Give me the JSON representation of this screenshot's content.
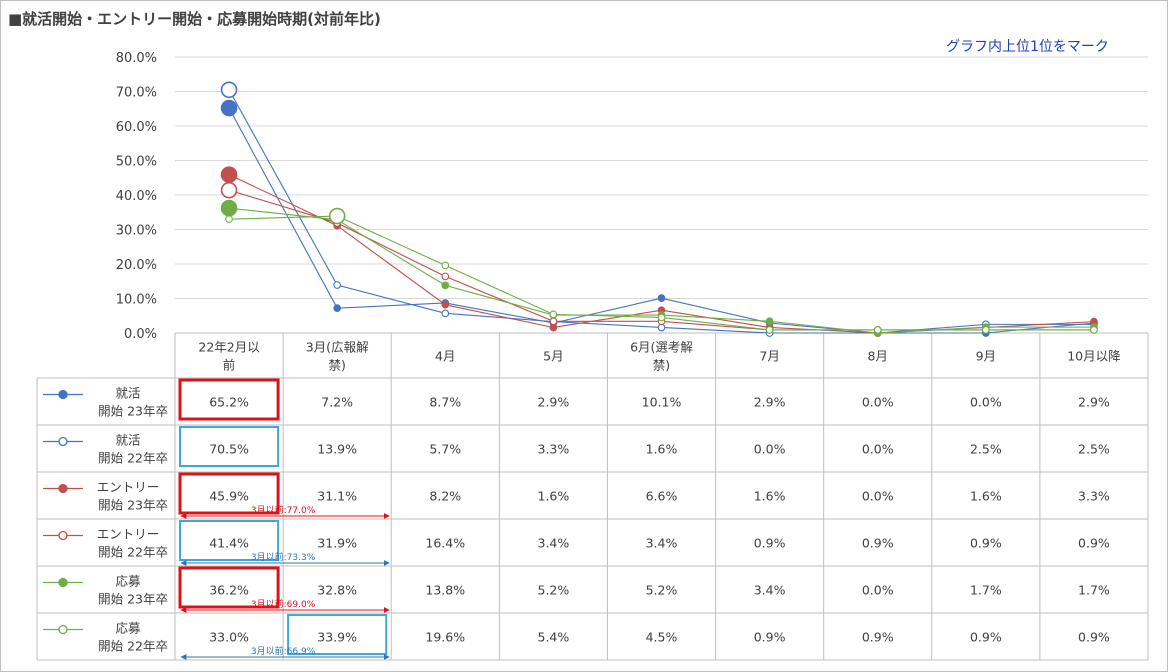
{
  "title": "■就活開始・エントリー開始・応募開始時期(対前年比)",
  "note": "グラフ内上位1位をマーク",
  "chart_data": {
    "type": "line",
    "categories": [
      "22年2月以前",
      "3月(広報解禁)",
      "4月",
      "5月",
      "6月(選考解禁)",
      "7月",
      "8月",
      "9月",
      "10月以降"
    ],
    "ylim": [
      0,
      80
    ],
    "yticks": [
      "0.0%",
      "10.0%",
      "20.0%",
      "30.0%",
      "40.0%",
      "50.0%",
      "60.0%",
      "70.0%",
      "80.0%"
    ],
    "series": [
      {
        "name": "就活開始 23年卒",
        "label1": "就活",
        "label2": "開始 23年卒",
        "color": "#4472c4",
        "filled": true,
        "values": [
          65.2,
          7.2,
          8.7,
          2.9,
          10.1,
          2.9,
          0.0,
          0.0,
          2.9
        ],
        "labels": [
          "65.2%",
          "7.2%",
          "8.7%",
          "2.9%",
          "10.1%",
          "2.9%",
          "0.0%",
          "0.0%",
          "2.9%"
        ]
      },
      {
        "name": "就活開始 22年卒",
        "label1": "就活",
        "label2": "開始 22年卒",
        "color": "#4472c4",
        "filled": false,
        "values": [
          70.5,
          13.9,
          5.7,
          3.3,
          1.6,
          0.0,
          0.0,
          2.5,
          2.5
        ],
        "labels": [
          "70.5%",
          "13.9%",
          "5.7%",
          "3.3%",
          "1.6%",
          "0.0%",
          "0.0%",
          "2.5%",
          "2.5%"
        ]
      },
      {
        "name": "エントリー開始 23年卒",
        "label1": "エントリー",
        "label2": "開始 23年卒",
        "color": "#c0504d",
        "filled": true,
        "values": [
          45.9,
          31.1,
          8.2,
          1.6,
          6.6,
          1.6,
          0.0,
          1.6,
          3.3
        ],
        "labels": [
          "45.9%",
          "31.1%",
          "8.2%",
          "1.6%",
          "6.6%",
          "1.6%",
          "0.0%",
          "1.6%",
          "3.3%"
        ]
      },
      {
        "name": "エントリー開始 22年卒",
        "label1": "エントリー",
        "label2": "開始 22年卒",
        "color": "#c0504d",
        "filled": false,
        "values": [
          41.4,
          31.9,
          16.4,
          3.4,
          3.4,
          0.9,
          0.9,
          0.9,
          0.9
        ],
        "labels": [
          "41.4%",
          "31.9%",
          "16.4%",
          "3.4%",
          "3.4%",
          "0.9%",
          "0.9%",
          "0.9%",
          "0.9%"
        ]
      },
      {
        "name": "応募開始 23年卒",
        "label1": "応募",
        "label2": "開始 23年卒",
        "color": "#70ad47",
        "filled": true,
        "values": [
          36.2,
          32.8,
          13.8,
          5.2,
          5.2,
          3.4,
          0.0,
          1.7,
          1.7
        ],
        "labels": [
          "36.2%",
          "32.8%",
          "13.8%",
          "5.2%",
          "5.2%",
          "3.4%",
          "0.0%",
          "1.7%",
          "1.7%"
        ]
      },
      {
        "name": "応募開始 22年卒",
        "label1": "応募",
        "label2": "開始 22年卒",
        "color": "#70ad47",
        "filled": false,
        "values": [
          33.0,
          33.9,
          19.6,
          5.4,
          4.5,
          0.9,
          0.9,
          0.9,
          0.9
        ],
        "labels": [
          "33.0%",
          "33.9%",
          "19.6%",
          "5.4%",
          "4.5%",
          "0.9%",
          "0.9%",
          "0.9%",
          "0.9%"
        ]
      }
    ],
    "top_marks": [
      {
        "series": 0,
        "index": 0,
        "color": "#e0101a"
      },
      {
        "series": 1,
        "index": 0,
        "color": "#3fa7dc"
      },
      {
        "series": 2,
        "index": 0,
        "color": "#e0101a"
      },
      {
        "series": 3,
        "index": 0,
        "color": "#3fa7dc"
      },
      {
        "series": 4,
        "index": 0,
        "color": "#e0101a"
      },
      {
        "series": 5,
        "index": 1,
        "color": "#3fa7dc"
      }
    ],
    "annotations": [
      {
        "series": 2,
        "text": "3月以前:77.0%",
        "color": "#e0101a"
      },
      {
        "series": 3,
        "text": "3月以前:73.3%",
        "color": "#2e75b6"
      },
      {
        "series": 4,
        "text": "3月以前:69.0%",
        "color": "#e0101a"
      },
      {
        "series": 5,
        "text": "3月以前:66.9%",
        "color": "#2e75b6"
      }
    ],
    "grid": true
  }
}
